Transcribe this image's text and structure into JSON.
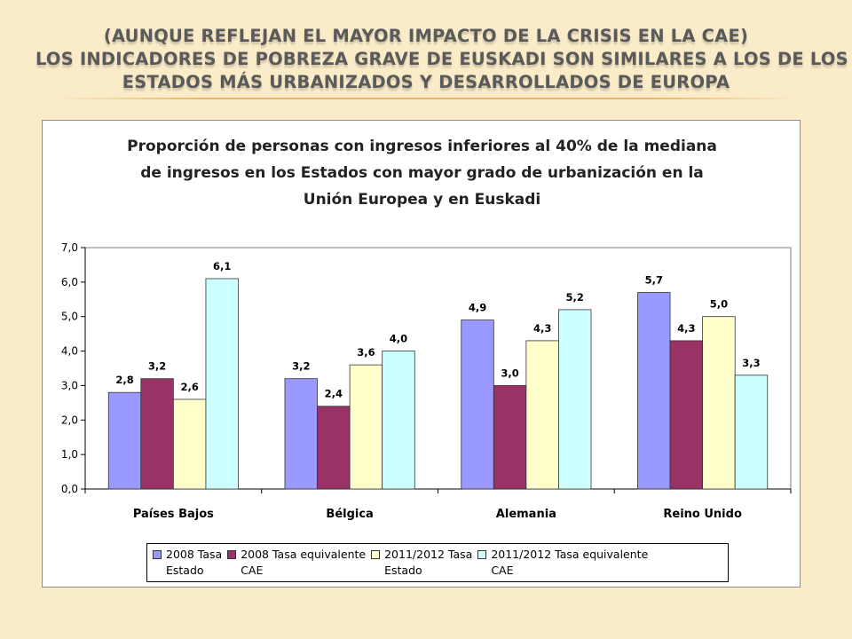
{
  "slide": {
    "title_lines": [
      "(AUNQUE REFLEJAN EL MAYOR IMPACTO DE LA CRISIS EN LA CAE)",
      "LOS INDICADORES DE POBREZA GRAVE DE EUSKADI SON SIMILARES A LOS DE LOS",
      "ESTADOS MÁS URBANIZADOS Y DESARROLLADOS DE EUROPA"
    ]
  },
  "chart_data": {
    "type": "bar",
    "title_lines": [
      "Proporción de personas con ingresos inferiores al 40% de la mediana",
      "de ingresos en los Estados con mayor grado de urbanización en la",
      "Unión Europea y en Euskadi"
    ],
    "categories": [
      "Países Bajos",
      "Bélgica",
      "Alemania",
      "Reino Unido"
    ],
    "series": [
      {
        "name_lines": [
          "2008 Tasa",
          "Estado"
        ],
        "color": "#9999ff",
        "values": [
          2.8,
          3.2,
          4.9,
          5.7
        ],
        "labels": [
          "2,8",
          "3,2",
          "4,9",
          "5,7"
        ]
      },
      {
        "name_lines": [
          "2008 Tasa equivalente",
          "CAE"
        ],
        "color": "#993366",
        "values": [
          3.2,
          2.4,
          3.0,
          4.3
        ],
        "labels": [
          "3,2",
          "2,4",
          "3,0",
          "4,3"
        ]
      },
      {
        "name_lines": [
          "2011/2012 Tasa",
          "Estado"
        ],
        "color": "#ffffcc",
        "values": [
          2.6,
          3.6,
          4.3,
          5.0
        ],
        "labels": [
          "2,6",
          "3,6",
          "4,3",
          "5,0"
        ]
      },
      {
        "name_lines": [
          "2011/2012 Tasa equivalente",
          "CAE"
        ],
        "color": "#ccffff",
        "values": [
          6.1,
          4.0,
          5.2,
          3.3
        ],
        "labels": [
          "6,1",
          "4,0",
          "5,2",
          "3,3"
        ]
      }
    ],
    "ylim": [
      0,
      7
    ],
    "yticks": [
      0,
      1,
      2,
      3,
      4,
      5,
      6,
      7
    ],
    "ytick_labels": [
      "0,0",
      "1,0",
      "2,0",
      "3,0",
      "4,0",
      "5,0",
      "6,0",
      "7,0"
    ],
    "grid": false,
    "legend_position": "bottom"
  }
}
